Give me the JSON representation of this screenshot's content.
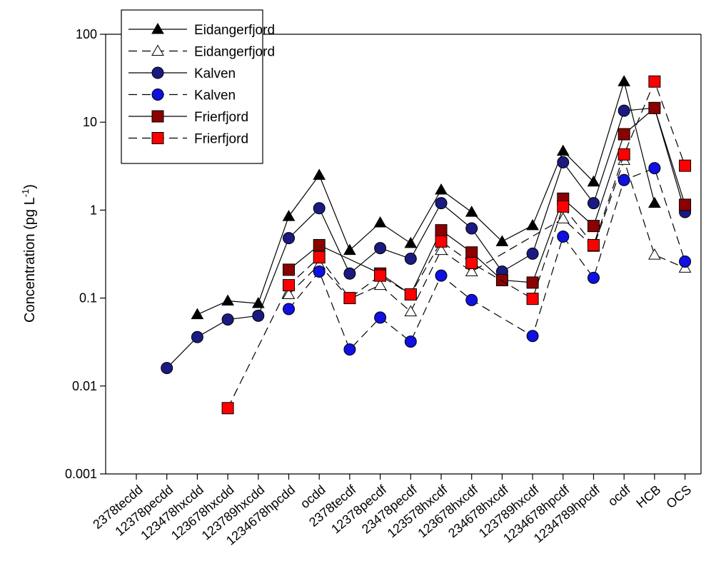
{
  "chart_data": {
    "type": "line",
    "title": "",
    "ylabel": "Concentration (pg L",
    "ylabel_superscript": "-1",
    "ylabel_suffix": ")",
    "yscale": "log",
    "ylim": [
      0.001,
      100
    ],
    "yticks": [
      {
        "value": 0.001,
        "label": "0.001"
      },
      {
        "value": 0.01,
        "label": "0.01"
      },
      {
        "value": 0.1,
        "label": "0.1"
      },
      {
        "value": 1,
        "label": "1"
      },
      {
        "value": 10,
        "label": "10"
      },
      {
        "value": 100,
        "label": "100"
      }
    ],
    "categories": [
      "2378tecdd",
      "12378pecdd",
      "123478hxcdd",
      "123678hxcdd",
      "123789hxcdd",
      "1234678hpcdd",
      "ocdd",
      "2378tecdf",
      "12378pecdf",
      "23478pecdf",
      "123578hxcdf",
      "123678hxcdf",
      "234678hxcdf",
      "123789hxcdf",
      "1234678hpcdf",
      "1234789hpcdf",
      "ocdf",
      "HCB",
      "OCS"
    ],
    "grid": false,
    "legend_position": "top-left",
    "series": [
      {
        "name": "Eidangerfjord",
        "marker": "triangle",
        "fill": "#000000",
        "dash": false,
        "values": [
          null,
          null,
          0.065,
          0.093,
          0.087,
          0.85,
          2.5,
          0.35,
          0.72,
          0.42,
          1.7,
          0.95,
          0.44,
          0.67,
          4.7,
          2.1,
          29,
          1.2,
          null
        ]
      },
      {
        "name": "Eidangerfjord",
        "marker": "triangle",
        "fill": "#ffffff",
        "dash": true,
        "values": [
          null,
          null,
          null,
          null,
          null,
          0.11,
          0.24,
          0.098,
          0.14,
          0.07,
          0.35,
          0.2,
          null,
          null,
          0.8,
          0.38,
          3.7,
          0.31,
          0.22
        ]
      },
      {
        "name": "Kalven",
        "marker": "circle",
        "fill": "#1a1a80",
        "dash": false,
        "values": [
          null,
          0.016,
          0.036,
          0.057,
          0.063,
          0.48,
          1.05,
          0.19,
          0.37,
          0.28,
          1.2,
          0.62,
          0.2,
          0.32,
          3.5,
          1.2,
          13.5,
          14.5,
          0.95
        ]
      },
      {
        "name": "Kalven",
        "marker": "circle",
        "fill": "#1010e0",
        "dash": true,
        "values": [
          null,
          null,
          null,
          null,
          null,
          0.075,
          0.2,
          0.026,
          0.06,
          0.032,
          0.18,
          0.095,
          null,
          0.037,
          0.5,
          0.17,
          2.2,
          3.0,
          0.26
        ]
      },
      {
        "name": "Frierfjord",
        "marker": "square",
        "fill": "#8b0000",
        "dash": false,
        "values": [
          null,
          null,
          null,
          null,
          null,
          0.21,
          0.4,
          null,
          0.19,
          0.11,
          0.59,
          0.33,
          0.16,
          0.15,
          1.35,
          0.66,
          7.3,
          14.5,
          1.15
        ]
      },
      {
        "name": "Frierfjord",
        "marker": "square",
        "fill": "#ff0000",
        "dash": true,
        "values": [
          null,
          null,
          null,
          0.0056,
          null,
          0.14,
          0.29,
          0.1,
          0.18,
          0.11,
          0.44,
          0.25,
          null,
          0.098,
          1.1,
          0.4,
          4.3,
          29,
          3.2
        ]
      }
    ]
  }
}
